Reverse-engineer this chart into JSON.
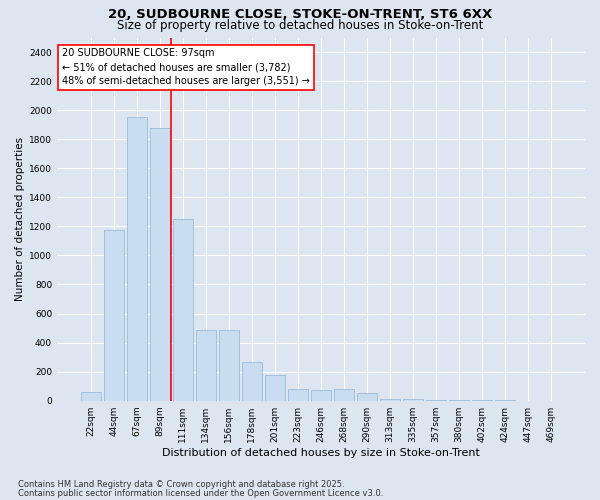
{
  "title_line1": "20, SUDBOURNE CLOSE, STOKE-ON-TRENT, ST6 6XX",
  "title_line2": "Size of property relative to detached houses in Stoke-on-Trent",
  "xlabel": "Distribution of detached houses by size in Stoke-on-Trent",
  "ylabel": "Number of detached properties",
  "categories": [
    "22sqm",
    "44sqm",
    "67sqm",
    "89sqm",
    "111sqm",
    "134sqm",
    "156sqm",
    "178sqm",
    "201sqm",
    "223sqm",
    "246sqm",
    "268sqm",
    "290sqm",
    "313sqm",
    "335sqm",
    "357sqm",
    "380sqm",
    "402sqm",
    "424sqm",
    "447sqm",
    "469sqm"
  ],
  "values": [
    60,
    1175,
    1950,
    1875,
    1250,
    490,
    490,
    265,
    175,
    80,
    75,
    80,
    50,
    15,
    10,
    5,
    5,
    3,
    2,
    1,
    1
  ],
  "bar_color": "#c9ddf0",
  "bar_edge_color": "#8db4d8",
  "vline_bar_index": 3,
  "vline_color": "red",
  "annotation_text": "20 SUDBOURNE CLOSE: 97sqm\n← 51% of detached houses are smaller (3,782)\n48% of semi-detached houses are larger (3,551) →",
  "annotation_box_edge_color": "red",
  "ylim": [
    0,
    2500
  ],
  "yticks": [
    0,
    200,
    400,
    600,
    800,
    1000,
    1200,
    1400,
    1600,
    1800,
    2000,
    2200,
    2400
  ],
  "background_color": "#dde6f0",
  "plot_bg_color": "#dde6f0",
  "grid_color": "white",
  "footnote1": "Contains HM Land Registry data © Crown copyright and database right 2025.",
  "footnote2": "Contains public sector information licensed under the Open Government Licence v3.0.",
  "title_fontsize": 9.5,
  "subtitle_fontsize": 8.5,
  "ylabel_fontsize": 7.5,
  "xlabel_fontsize": 8,
  "tick_fontsize": 6.5,
  "annotation_fontsize": 7,
  "footnote_fontsize": 6
}
